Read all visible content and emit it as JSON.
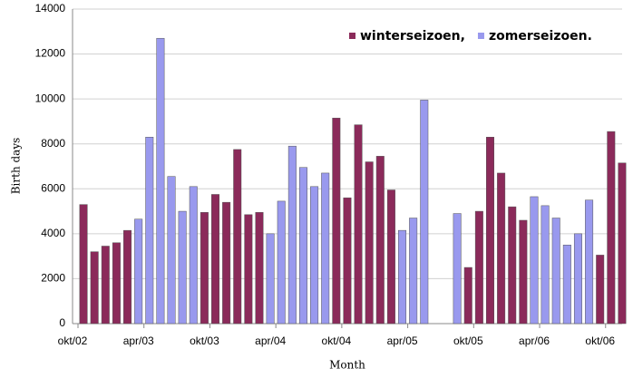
{
  "chart_data": {
    "type": "bar",
    "x_label": "Month",
    "y_label": "Birth days",
    "categories": [
      "okt/02",
      null,
      null,
      null,
      null,
      null,
      "apr/03",
      null,
      null,
      null,
      null,
      null,
      "okt/03",
      null,
      null,
      null,
      null,
      null,
      "apr/04",
      null,
      null,
      null,
      null,
      null,
      "okt/04",
      null,
      null,
      null,
      null,
      null,
      "apr/05",
      null,
      null,
      null,
      null,
      null,
      "okt/05",
      null,
      null,
      null,
      null,
      null,
      "apr/06",
      null,
      null,
      null,
      null,
      null,
      "okt/06",
      null
    ],
    "series": [
      {
        "name": "winterseizoen,",
        "color": "#8b2a5a",
        "values": [
          5300,
          3200,
          3450,
          3600,
          4150,
          null,
          null,
          null,
          null,
          null,
          null,
          4950,
          5750,
          5400,
          7750,
          4850,
          4950,
          null,
          null,
          null,
          null,
          null,
          null,
          9150,
          5600,
          8850,
          7200,
          7450,
          5950,
          null,
          null,
          null,
          null,
          null,
          null,
          2500,
          5000,
          8300,
          6700,
          5200,
          4600,
          null,
          null,
          null,
          null,
          null,
          null,
          3050,
          8550,
          7150
        ]
      },
      {
        "name": "zomerseizoen.",
        "color": "#9999ee",
        "values": [
          null,
          null,
          null,
          null,
          null,
          4650,
          8300,
          12700,
          6550,
          5000,
          6100,
          null,
          null,
          null,
          null,
          null,
          null,
          4000,
          5450,
          7900,
          6950,
          6100,
          6700,
          null,
          null,
          null,
          null,
          null,
          null,
          4150,
          4700,
          9950,
          null,
          null,
          4900,
          null,
          null,
          null,
          null,
          null,
          null,
          5650,
          5250,
          4700,
          3500,
          4000,
          5500,
          null,
          null,
          null
        ]
      }
    ],
    "ylim": [
      0,
      14000
    ],
    "yticks": [
      0,
      2000,
      4000,
      6000,
      8000,
      10000,
      12000,
      14000
    ],
    "grid": true,
    "legend": "top-right"
  }
}
